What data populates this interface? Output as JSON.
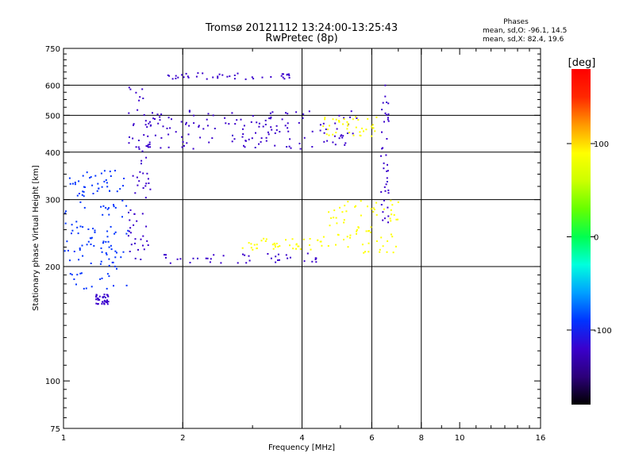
{
  "chart_data": {
    "type": "scatter",
    "title": "Tromsø 20121112 13:24:00-13:25:43",
    "subtitle": "RwPretec (8p)",
    "stats": {
      "heading": "Phases",
      "line1": "mean, sd,O: -96.1, 14.5",
      "line2": "mean, sd,X:  82.4, 19.6"
    },
    "xlabel": "Frequency [MHz]",
    "ylabel": "Stationary phase Virtual Height [km]",
    "xscale": "log",
    "yscale": "log",
    "xlim": [
      1,
      16
    ],
    "ylim": [
      75,
      750
    ],
    "xticks": [
      1,
      2,
      4,
      6,
      8,
      10,
      16
    ],
    "xtick_labels": [
      "1",
      "2",
      "4",
      "6",
      "8",
      "10",
      "16"
    ],
    "yticks": [
      75,
      100,
      200,
      300,
      400,
      500,
      600,
      750
    ],
    "ytick_labels": [
      "75",
      "100",
      "200",
      "300",
      "400",
      "500",
      "600",
      "750"
    ],
    "xgrid": [
      2,
      4,
      6,
      8
    ],
    "ygrid": [
      200,
      300,
      400,
      500,
      600
    ],
    "colorbar": {
      "label": "[deg]",
      "range": [
        -180,
        180
      ],
      "ticks": [
        100,
        0,
        -100
      ],
      "tick_labels": [
        "100",
        "0",
        "-100"
      ],
      "colors": [
        "#000000",
        "#2c007a",
        "#3a00cc",
        "#0033ff",
        "#00a0ff",
        "#00ffdd",
        "#00ff50",
        "#66ff00",
        "#ccff00",
        "#ffff00",
        "#ff9900",
        "#ff2800",
        "#ff0000"
      ]
    },
    "series": [
      {
        "values": [
          {
            "x": [
              1.0,
              1.45
            ],
            "y": [
              175,
              360
            ],
            "phase": -100
          },
          {
            "x": [
              1.45,
              1.65
            ],
            "y": [
              210,
              600
            ],
            "phase": -110
          },
          {
            "x": [
              1.55,
              4.5
            ],
            "y": [
              205,
              218
            ],
            "phase": -115
          },
          {
            "x": [
              4.5,
              7.0
            ],
            "y": [
              218,
              300
            ],
            "phase": 90
          },
          {
            "x": [
              6.3,
              6.6
            ],
            "y": [
              260,
              620
            ],
            "phase": -110
          },
          {
            "x": [
              1.6,
              5.5
            ],
            "y": [
              410,
              520
            ],
            "phase": -120
          },
          {
            "x": [
              4.5,
              6.2
            ],
            "y": [
              440,
              500
            ],
            "phase": 100
          },
          {
            "x": [
              1.8,
              3.8
            ],
            "y": [
              625,
              650
            ],
            "phase": -120
          },
          {
            "x": [
              1.2,
              1.3
            ],
            "y": [
              160,
              170
            ],
            "phase": -110
          },
          {
            "x": [
              2.8,
              4.5
            ],
            "y": [
              222,
              238
            ],
            "phase": 90
          }
        ]
      }
    ]
  }
}
